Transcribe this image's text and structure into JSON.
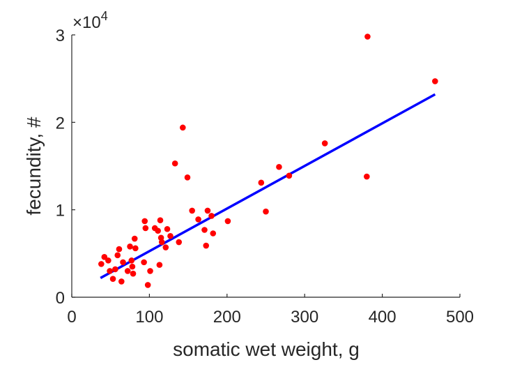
{
  "chart_data": {
    "type": "scatter",
    "title": "",
    "xlabel": "somatic wet weight, g",
    "ylabel": "fecundity, #",
    "xlim": [
      0,
      500
    ],
    "ylim": [
      0,
      30000
    ],
    "x_ticks": [
      0,
      100,
      200,
      300,
      400,
      500
    ],
    "y_ticks": [
      0,
      10000,
      20000,
      30000
    ],
    "x_tick_labels": [
      "0",
      "100",
      "200",
      "300",
      "400",
      "500"
    ],
    "y_tick_labels": [
      "0",
      "1",
      "2",
      "3"
    ],
    "y_exponent_label": "×10",
    "y_exponent_power": "4",
    "grid": false,
    "legend": "none",
    "colors": {
      "points": "#ff0000",
      "fit_line": "#0000ff",
      "axes": "#262626"
    },
    "series": [
      {
        "type": "scatter",
        "points": [
          [
            38,
            3800
          ],
          [
            42,
            4600
          ],
          [
            47,
            4200
          ],
          [
            49,
            3000
          ],
          [
            53,
            2100
          ],
          [
            56,
            3200
          ],
          [
            59,
            4800
          ],
          [
            61,
            5500
          ],
          [
            64,
            1800
          ],
          [
            66,
            4000
          ],
          [
            72,
            3000
          ],
          [
            75,
            5800
          ],
          [
            77,
            4200
          ],
          [
            78,
            3500
          ],
          [
            79,
            2700
          ],
          [
            81,
            6700
          ],
          [
            82,
            5600
          ],
          [
            93,
            4000
          ],
          [
            94,
            8700
          ],
          [
            95,
            7900
          ],
          [
            98,
            1400
          ],
          [
            101,
            3000
          ],
          [
            107,
            7900
          ],
          [
            111,
            7600
          ],
          [
            113,
            3700
          ],
          [
            114,
            8800
          ],
          [
            115,
            6800
          ],
          [
            116,
            6300
          ],
          [
            121,
            5700
          ],
          [
            123,
            7800
          ],
          [
            127,
            7000
          ],
          [
            133,
            15300
          ],
          [
            138,
            6300
          ],
          [
            143,
            19400
          ],
          [
            149,
            13700
          ],
          [
            155,
            9900
          ],
          [
            163,
            8900
          ],
          [
            171,
            7700
          ],
          [
            173,
            5900
          ],
          [
            175,
            9900
          ],
          [
            180,
            9300
          ],
          [
            182,
            7300
          ],
          [
            201,
            8700
          ],
          [
            244,
            13100
          ],
          [
            250,
            9800
          ],
          [
            267,
            14900
          ],
          [
            280,
            13900
          ],
          [
            326,
            17600
          ],
          [
            380,
            13800
          ],
          [
            381,
            29800
          ],
          [
            468,
            24700
          ]
        ]
      },
      {
        "type": "line",
        "x": [
          37,
          468
        ],
        "y": [
          2200,
          23200
        ]
      }
    ]
  }
}
